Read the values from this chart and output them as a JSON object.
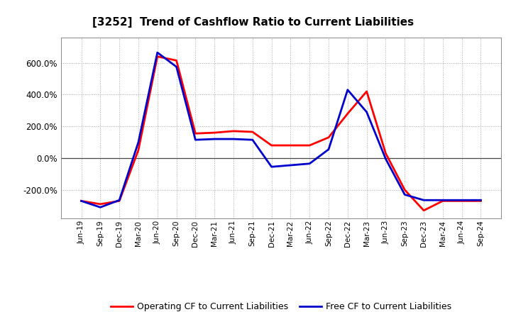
{
  "title": "[3252]  Trend of Cashflow Ratio to Current Liabilities",
  "x_labels": [
    "Jun-19",
    "Sep-19",
    "Dec-19",
    "Mar-20",
    "Jun-20",
    "Sep-20",
    "Dec-20",
    "Mar-21",
    "Jun-21",
    "Sep-21",
    "Dec-21",
    "Mar-22",
    "Jun-22",
    "Sep-22",
    "Dec-22",
    "Mar-23",
    "Jun-23",
    "Sep-23",
    "Dec-23",
    "Mar-24",
    "Jun-24",
    "Sep-24"
  ],
  "operating_cf": [
    -270,
    -290,
    -270,
    50,
    640,
    615,
    155,
    160,
    170,
    165,
    80,
    80,
    80,
    130,
    280,
    420,
    30,
    -200,
    -330,
    -270,
    -270,
    -270
  ],
  "free_cf": [
    -270,
    -310,
    -265,
    100,
    665,
    575,
    115,
    120,
    120,
    115,
    -55,
    -45,
    -35,
    55,
    430,
    290,
    -5,
    -230,
    -265,
    -265,
    -265,
    -265
  ],
  "operating_color": "#ff0000",
  "free_color": "#0000cc",
  "background_color": "#ffffff",
  "plot_bg_color": "#ffffff",
  "grid_color": "#aaaaaa",
  "ylim": [
    -380,
    760
  ],
  "yticks": [
    -200,
    0,
    200,
    400,
    600
  ],
  "ytick_labels": [
    "-200.0%",
    "0.0%",
    "200.0%",
    "400.0%",
    "600.0%"
  ],
  "legend_op": "Operating CF to Current Liabilities",
  "legend_free": "Free CF to Current Liabilities",
  "line_width": 2.0,
  "title_fontsize": 11,
  "tick_fontsize": 7.5,
  "ytick_fontsize": 8.5
}
